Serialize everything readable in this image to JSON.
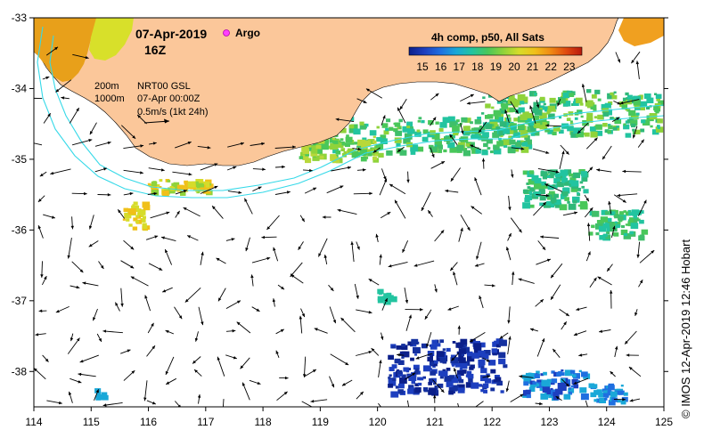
{
  "header": {
    "date": "07-Apr-2019",
    "hour": "16Z",
    "argo_label": "Argo"
  },
  "legend": {
    "isobath_200": "200m",
    "isobath_1000": "1000m",
    "product": "NRT00 GSL",
    "product_time": "07-Apr 00:00Z",
    "vector_scale": "0.5m/s (1kt 24h)"
  },
  "colorbar": {
    "title": "4h comp, p50, All Sats",
    "ticks": [
      "15",
      "16",
      "17",
      "18",
      "19",
      "20",
      "21",
      "22",
      "23"
    ],
    "colors": [
      "#0b1f8a",
      "#1d3fbf",
      "#1f6fe0",
      "#1aa8d8",
      "#22c4a0",
      "#49c75a",
      "#8fd33a",
      "#d6dc2a",
      "#f0c019",
      "#f08a14",
      "#e04a10",
      "#b81a0c"
    ]
  },
  "axes": {
    "x_ticks": [
      "114",
      "115",
      "116",
      "117",
      "118",
      "119",
      "120",
      "121",
      "122",
      "123",
      "124",
      "125"
    ],
    "y_ticks": [
      "-33",
      "-34",
      "-35",
      "-36",
      "-37",
      "-38"
    ],
    "xlim": [
      114,
      125
    ],
    "ylim": [
      -38.5,
      -33
    ]
  },
  "credit": "© IMOS 12-Apr-2019 12:46 Hobart",
  "colors": {
    "land": "#fbc79a",
    "arrows": "#000000",
    "isobath": "#35d9e8",
    "argo": "#ff40ff"
  }
}
